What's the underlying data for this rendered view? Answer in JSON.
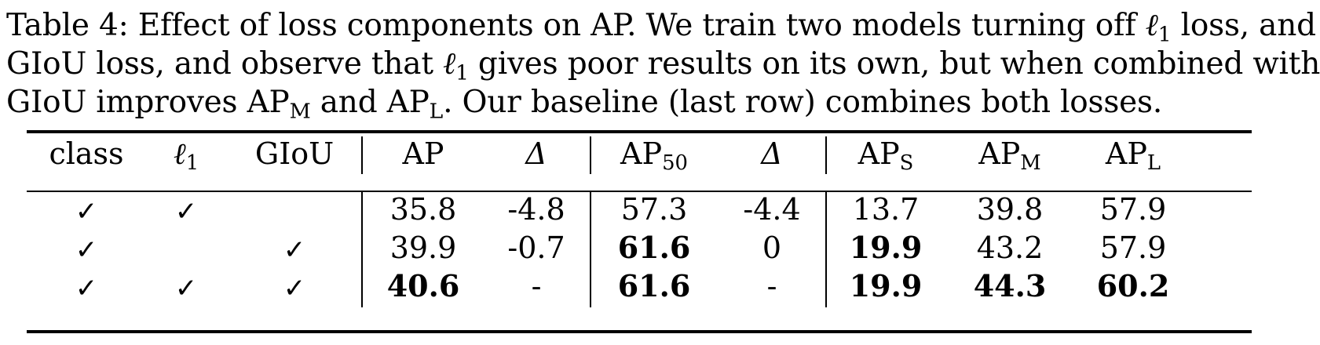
{
  "caption": {
    "lines": [
      "Table 4: Effect of loss components on AP. We train two models turning off ℓ1 loss, and",
      "GIoU loss, and observe that ℓ1 gives poor results on its own, but when combined with",
      "GIoU improves APM and APL. Our baseline (last row) combines both losses."
    ],
    "line1_a": "Table 4: Effect of loss components on AP. We train two models turning off ",
    "line1_ell": "ℓ",
    "line1_ell_sub": "1",
    "line1_b": " loss, and",
    "line2_a": "GIoU loss, and observe that ",
    "line2_ell": "ℓ",
    "line2_ell_sub": "1",
    "line2_b": " gives poor results on its own, but when combined with",
    "line3_a": "GIoU improves AP",
    "line3_sub_m": "M",
    "line3_mid": " and AP",
    "line3_sub_l": "L",
    "line3_b": ". Our baseline (last row) combines both losses."
  },
  "table": {
    "headers": {
      "class": "class",
      "l1": "ℓ",
      "l1_sub": "1",
      "giou": "GIoU",
      "ap": "AP",
      "delta1": "Δ",
      "ap50": "AP",
      "ap50_sub": "50",
      "delta2": "Δ",
      "aps": "AP",
      "aps_sub": "S",
      "apm": "AP",
      "apm_sub": "M",
      "apl": "AP",
      "apl_sub": "L"
    },
    "rows": [
      {
        "class": "✓",
        "l1": "✓",
        "giou": "",
        "ap": "35.8",
        "d1": "-4.8",
        "ap50": "57.3",
        "d2": "-4.4",
        "aps": "13.7",
        "apm": "39.8",
        "apl": "57.9"
      },
      {
        "class": "✓",
        "l1": "",
        "giou": "✓",
        "ap": "39.9",
        "d1": "-0.7",
        "ap50": "61.6",
        "d2": "0",
        "aps": "19.9",
        "apm": "43.2",
        "apl": "57.9"
      },
      {
        "class": "✓",
        "l1": "✓",
        "giou": "✓",
        "ap": "40.6",
        "d1": "-",
        "ap50": "61.6",
        "d2": "-",
        "aps": "19.9",
        "apm": "44.3",
        "apl": "60.2"
      }
    ]
  }
}
